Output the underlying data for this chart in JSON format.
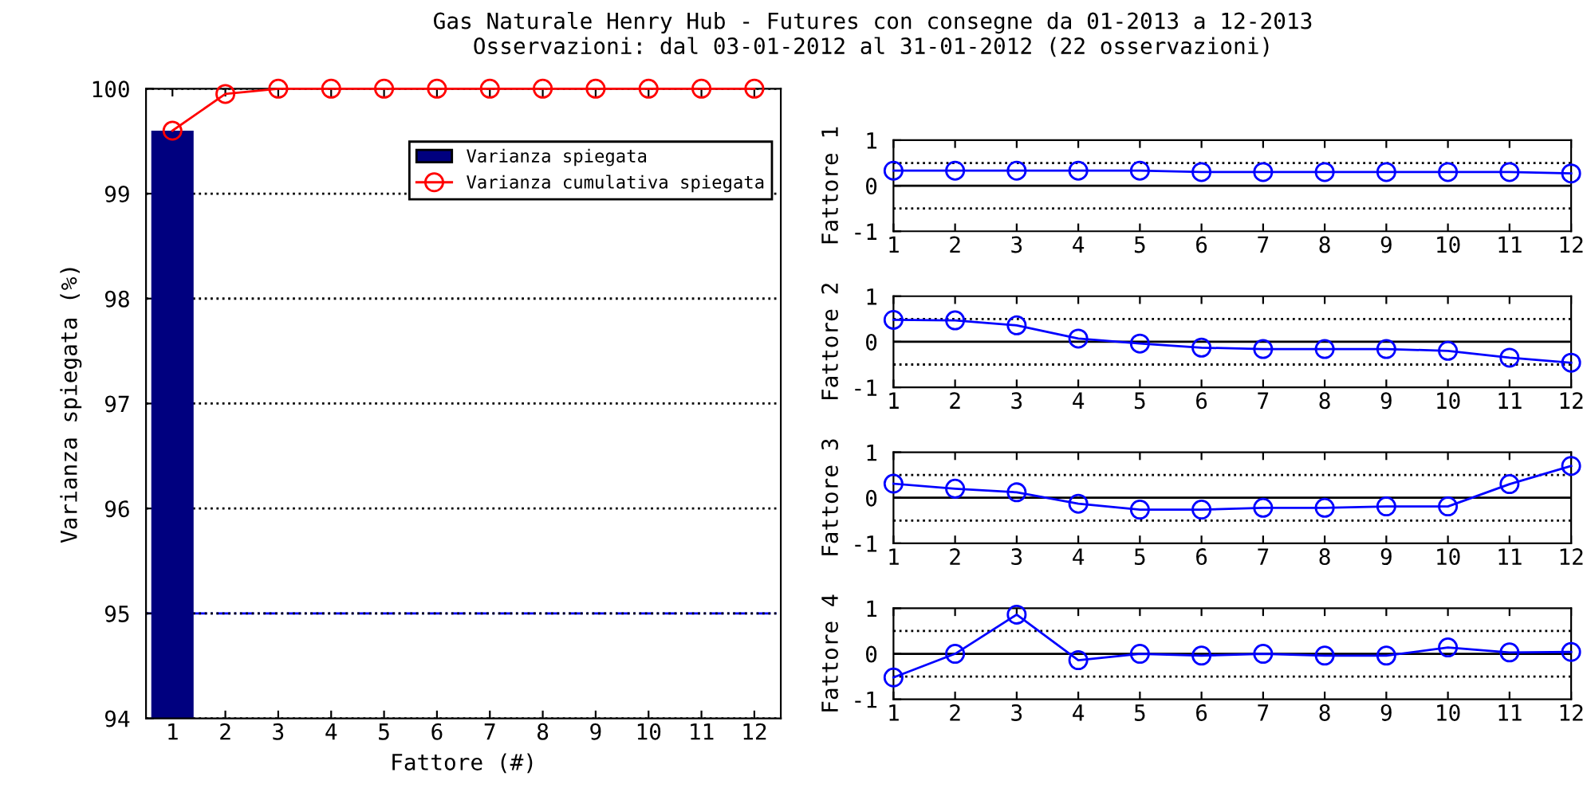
{
  "chart_data": [
    {
      "type": "bar",
      "title": "Gas Naturale Henry Hub - Futures con consegne da 01-2013 a 12-2013",
      "subtitle": "Osservazioni: dal 03-01-2012 al 31-01-2012 (22 osservazioni)",
      "xlabel": "Fattore (#)",
      "ylabel": "Varianza spiegata (%)",
      "categories": [
        "1",
        "2",
        "3",
        "4",
        "5",
        "6",
        "7",
        "8",
        "9",
        "10",
        "11",
        "12"
      ],
      "series": [
        {
          "name": "Varianza spiegata",
          "type": "bar",
          "color": "#00007f",
          "values": [
            99.6,
            null,
            null,
            null,
            null,
            null,
            null,
            null,
            null,
            null,
            null,
            null
          ]
        },
        {
          "name": "Varianza cumulativa spiegata",
          "type": "line",
          "color": "#ff0000",
          "marker": "circle",
          "values": [
            99.6,
            99.95,
            100,
            100,
            100,
            100,
            100,
            100,
            100,
            100,
            100,
            100
          ]
        }
      ],
      "ylim": [
        94,
        100
      ],
      "yticks": [
        94,
        95,
        96,
        97,
        98,
        99,
        100
      ],
      "grid": "y",
      "legend": "top right",
      "ref_lines": [
        {
          "axis": "y",
          "value": 95,
          "color": "#0000ff",
          "line_style": "dashdot"
        }
      ]
    },
    {
      "type": "line",
      "ylabel": "Fattore 1",
      "x": [
        1,
        2,
        3,
        4,
        5,
        6,
        7,
        8,
        9,
        10,
        11,
        12
      ],
      "series": [
        {
          "color": "#0000ff",
          "marker": "circle",
          "values": [
            0.33,
            0.33,
            0.33,
            0.33,
            0.33,
            0.3,
            0.3,
            0.3,
            0.3,
            0.3,
            0.3,
            0.27
          ]
        }
      ],
      "xlim": [
        1,
        12
      ],
      "xticks": [
        1,
        2,
        3,
        4,
        5,
        6,
        7,
        8,
        9,
        10,
        11,
        12
      ],
      "ylim": [
        -1,
        1
      ],
      "yticks": [
        -1,
        0,
        1
      ],
      "ref_lines": [
        {
          "axis": "y",
          "value": 0.5,
          "color": "#000000",
          "line_style": "dotted"
        },
        {
          "axis": "y",
          "value": -0.5,
          "color": "#000000",
          "line_style": "dotted"
        },
        {
          "axis": "y",
          "value": 0,
          "color": "#000000",
          "line_style": "solid"
        }
      ]
    },
    {
      "type": "line",
      "ylabel": "Fattore 2",
      "x": [
        1,
        2,
        3,
        4,
        5,
        6,
        7,
        8,
        9,
        10,
        11,
        12
      ],
      "series": [
        {
          "color": "#0000ff",
          "marker": "circle",
          "values": [
            0.48,
            0.47,
            0.36,
            0.07,
            -0.04,
            -0.13,
            -0.16,
            -0.16,
            -0.16,
            -0.2,
            -0.35,
            -0.46
          ]
        }
      ],
      "xlim": [
        1,
        12
      ],
      "xticks": [
        1,
        2,
        3,
        4,
        5,
        6,
        7,
        8,
        9,
        10,
        11,
        12
      ],
      "ylim": [
        -1,
        1
      ],
      "yticks": [
        -1,
        0,
        1
      ],
      "ref_lines": [
        {
          "axis": "y",
          "value": 0.5,
          "color": "#000000",
          "line_style": "dotted"
        },
        {
          "axis": "y",
          "value": -0.5,
          "color": "#000000",
          "line_style": "dotted"
        },
        {
          "axis": "y",
          "value": 0,
          "color": "#000000",
          "line_style": "solid"
        }
      ]
    },
    {
      "type": "line",
      "ylabel": "Fattore 3",
      "x": [
        1,
        2,
        3,
        4,
        5,
        6,
        7,
        8,
        9,
        10,
        11,
        12
      ],
      "series": [
        {
          "color": "#0000ff",
          "marker": "circle",
          "values": [
            0.31,
            0.2,
            0.12,
            -0.13,
            -0.26,
            -0.26,
            -0.22,
            -0.22,
            -0.19,
            -0.19,
            0.3,
            0.7
          ]
        }
      ],
      "xlim": [
        1,
        12
      ],
      "xticks": [
        1,
        2,
        3,
        4,
        5,
        6,
        7,
        8,
        9,
        10,
        11,
        12
      ],
      "ylim": [
        -1,
        1
      ],
      "yticks": [
        -1,
        0,
        1
      ],
      "ref_lines": [
        {
          "axis": "y",
          "value": 0.5,
          "color": "#000000",
          "line_style": "dotted"
        },
        {
          "axis": "y",
          "value": -0.5,
          "color": "#000000",
          "line_style": "dotted"
        },
        {
          "axis": "y",
          "value": 0,
          "color": "#000000",
          "line_style": "solid"
        }
      ]
    },
    {
      "type": "line",
      "ylabel": "Fattore 4",
      "x": [
        1,
        2,
        3,
        4,
        5,
        6,
        7,
        8,
        9,
        10,
        11,
        12
      ],
      "series": [
        {
          "color": "#0000ff",
          "marker": "circle",
          "values": [
            -0.52,
            0,
            0.86,
            -0.14,
            0,
            -0.04,
            0,
            -0.04,
            -0.04,
            0.14,
            0.03,
            0.04
          ]
        }
      ],
      "xlim": [
        1,
        12
      ],
      "xticks": [
        1,
        2,
        3,
        4,
        5,
        6,
        7,
        8,
        9,
        10,
        11,
        12
      ],
      "ylim": [
        -1,
        1
      ],
      "yticks": [
        -1,
        0,
        1
      ],
      "ref_lines": [
        {
          "axis": "y",
          "value": 0.5,
          "color": "#000000",
          "line_style": "dotted"
        },
        {
          "axis": "y",
          "value": -0.5,
          "color": "#000000",
          "line_style": "dotted"
        },
        {
          "axis": "y",
          "value": 0,
          "color": "#000000",
          "line_style": "solid"
        }
      ]
    }
  ]
}
